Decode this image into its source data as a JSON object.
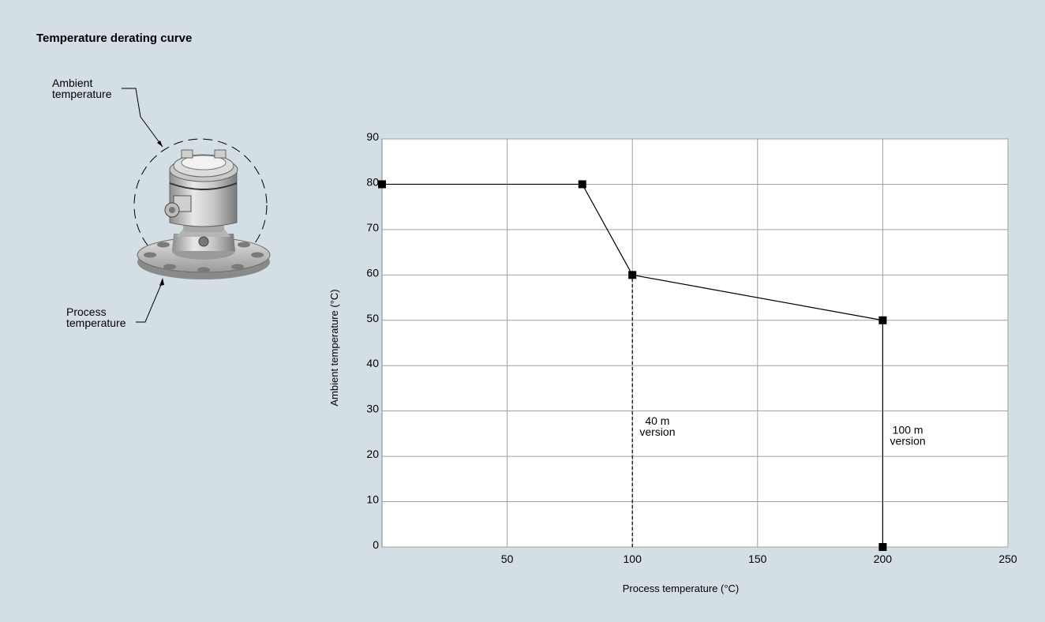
{
  "page": {
    "title": "Temperature derating curve"
  },
  "figure": {
    "ambient_label": [
      "Ambient",
      "temperature"
    ],
    "process_label": [
      "Process",
      "temperature"
    ]
  },
  "chart_data": {
    "type": "line",
    "title": "",
    "xlabel": "Process temperature (°C)",
    "ylabel": "Ambient temperature (°C)",
    "xlim": [
      0,
      250
    ],
    "ylim": [
      0,
      90
    ],
    "x_ticks": [
      50,
      100,
      150,
      200,
      250
    ],
    "y_ticks": [
      0,
      10,
      20,
      30,
      40,
      50,
      60,
      70,
      80,
      90
    ],
    "grid": true,
    "series": [
      {
        "points": [
          [
            0,
            80
          ],
          [
            80,
            80
          ],
          [
            100,
            60
          ],
          [
            200,
            50
          ]
        ],
        "style": "solid"
      }
    ],
    "limits": [
      {
        "x": 100,
        "from": 0,
        "to": 60,
        "style": "dashed",
        "label": [
          "40 m",
          "version"
        ],
        "label_at": [
          110,
          27
        ]
      },
      {
        "x": 200,
        "from": 0,
        "to": 50,
        "style": "solid",
        "label": [
          "100 m",
          "version"
        ],
        "label_at": [
          210,
          25
        ]
      }
    ],
    "colors": {
      "line": "#000000",
      "grid": "#a0a0a0",
      "plot_bg": "#ffffff"
    }
  }
}
